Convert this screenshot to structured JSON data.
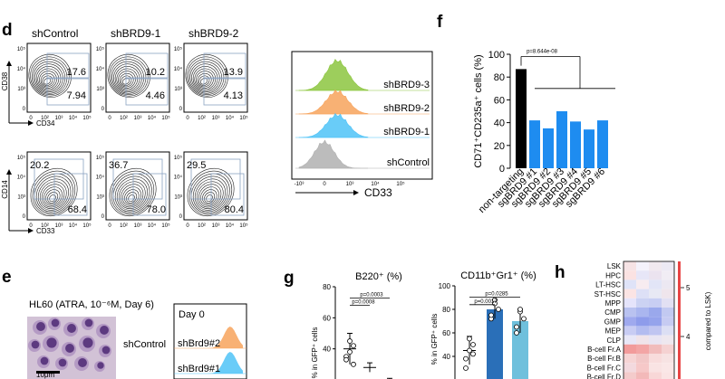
{
  "panel_d": {
    "label": "d",
    "row1_titles": [
      "shControl",
      "shBRD9-1",
      "shBRD9-2"
    ],
    "row1_xlabel": "CD34",
    "row1_ylabel": "CD38",
    "row1_quadrants": [
      [
        "17.6",
        "7.94"
      ],
      [
        "10.2",
        "4.46"
      ],
      [
        "13.9",
        "4.13"
      ]
    ],
    "row2_xlabel": "CD33",
    "row2_ylabel": "CD14",
    "row2_values": [
      [
        "20.2",
        "68.4"
      ],
      [
        "36.7",
        "78.0"
      ],
      [
        "29.5",
        "80.4"
      ]
    ],
    "y_ticks": [
      "10⁵",
      "10⁴",
      "10³",
      "0"
    ],
    "x_ticks": [
      "0",
      "10²",
      "10³",
      "10⁴",
      "10⁵"
    ],
    "histogram": {
      "xlabel": "CD33",
      "x_ticks": [
        "-10³",
        "0",
        "10³",
        "10⁴",
        "10⁵"
      ],
      "tracks": [
        {
          "name": "shBRD9-3",
          "color": "#8cc63f"
        },
        {
          "name": "shBRD9-2",
          "color": "#f7a35c"
        },
        {
          "name": "shBRD9-1",
          "color": "#4fc3f7"
        },
        {
          "name": "shControl",
          "color": "#b0b0b0"
        }
      ]
    }
  },
  "panel_e": {
    "label": "e",
    "caption": "HL60 (ATRA, 10⁻⁶M, Day 6)",
    "image_label": "shControl",
    "scalebar": "10μm",
    "day_label": "Day 0",
    "tracks": [
      {
        "name": "shBrd9#2",
        "color": "#f7a35c"
      },
      {
        "name": "shBrd9#1",
        "color": "#4fc3f7"
      }
    ]
  },
  "panel_g": {
    "label": "g",
    "ylabel": "% in GFP⁺ cells"
  },
  "panel_h": {
    "label": "h",
    "ylabel": "compared to LSK)",
    "scale_ticks": [
      "5",
      "4"
    ],
    "rows": [
      "LSK",
      "HPC",
      "LT-HSC",
      "ST-HSC",
      "MPP",
      "CMP",
      "GMP",
      "MEP",
      "CLP",
      "B-cell Fr.A",
      "B-cell Fr.B",
      "B-cell Fr.C",
      "B-cell Fr.D"
    ],
    "colors": [
      [
        "#f6e3e5",
        "#f4f2fb",
        "#f1e9ef",
        "#ece9f4"
      ],
      [
        "#fbe2e2",
        "#e7e6f7",
        "#ebe3ef",
        "#f1edf4"
      ],
      [
        "#dfe3f8",
        "#f7ecf0",
        "#e2e5f7",
        "#ece8f2"
      ],
      [
        "#fbe4e4",
        "#dde0f6",
        "#e8e9f4",
        "#efe5ec"
      ],
      [
        "#e5e4fb",
        "#cbd2f3",
        "#c8cef3",
        "#e2e0f3"
      ],
      [
        "#b9c2f0",
        "#aab6ef",
        "#9aa8ec",
        "#c2c9f1"
      ],
      [
        "#9fa9ee",
        "#8e9ceb",
        "#95a3ec",
        "#c6cbf2"
      ],
      [
        "#c8ccf3",
        "#b3bcf0",
        "#c0c5f1",
        "#dcdff4"
      ],
      [
        "#e8e7f7",
        "#f0e4ea",
        "#e9e5f3",
        "#eee8ef"
      ],
      [
        "#f29b9b",
        "#f3a5a5",
        "#f1bcbc",
        "#f5d2d2"
      ],
      [
        "#f6d4d4",
        "#f2c7c7",
        "#f8dcdc",
        "#f7e3e3"
      ],
      [
        "#f3d9de",
        "#f6c8c8",
        "#f9e3e3",
        "#fae7e7"
      ],
      [
        "#f4cbcb",
        "#f3b9b9",
        "#f8d7d7",
        "#fae4e4"
      ]
    ]
  },
  "chart_data": [
    {
      "id": "f",
      "type": "bar",
      "title": "",
      "xlabel": "",
      "ylabel": "CD71⁺CD235a⁺ cells (%)",
      "ylim": [
        0,
        100
      ],
      "y_ticks": [
        0,
        20,
        40,
        60,
        80,
        100
      ],
      "categories": [
        "non-targeting",
        "sgBRD9 #1",
        "sgBRD9 #2",
        "sgBRD9 #3",
        "sgBRD9 #4",
        "sgBRD9 #5",
        "sgBRD9 #6"
      ],
      "values": [
        87,
        42,
        35,
        50,
        41,
        34,
        42
      ],
      "colors": [
        "#000000",
        "#1e8cf0",
        "#1e8cf0",
        "#1e8cf0",
        "#1e8cf0",
        "#1e8cf0",
        "#1e8cf0"
      ],
      "annotations": [
        "p=8.644e-08"
      ]
    },
    {
      "id": "g1",
      "type": "scatter",
      "title": "B220⁺ (%)",
      "ylabel": "% in GFP⁺ cells",
      "ylim": [
        20,
        80
      ],
      "y_ticks": [
        20,
        40,
        60,
        80
      ],
      "groups": [
        {
          "mean": 40,
          "sd": 10,
          "points": [
            35,
            38,
            42,
            33,
            45,
            30
          ],
          "color": "#ffffff"
        },
        {
          "mean": 28,
          "sd": 3,
          "points": [],
          "color": "#ffffff"
        },
        {
          "mean": 20,
          "sd": 1,
          "points": [],
          "color": "#ffffff"
        }
      ],
      "annotations": [
        "p=0.0003",
        "p=0.0008"
      ]
    },
    {
      "id": "g2",
      "type": "scatter",
      "title": "CD11b⁺Gr1⁺ (%)",
      "ylabel": "% in GFP⁺ cells",
      "ylim": [
        20,
        100
      ],
      "y_ticks": [
        20,
        40,
        60,
        80,
        100
      ],
      "groups": [
        {
          "mean": 45,
          "sd": 12,
          "points": [
            38,
            45,
            50,
            30,
            55,
            42
          ],
          "color": "#ffffff"
        },
        {
          "mean": 80,
          "sd": 8,
          "points": [
            72,
            88,
            80,
            75,
            85
          ],
          "color": "#2a6fb8"
        },
        {
          "mean": 70,
          "sd": 10,
          "points": [
            60,
            78,
            72,
            65,
            80
          ],
          "color": "#6fc0dc"
        }
      ],
      "annotations": [
        "p=0.0285",
        "p=0.0017"
      ]
    }
  ]
}
